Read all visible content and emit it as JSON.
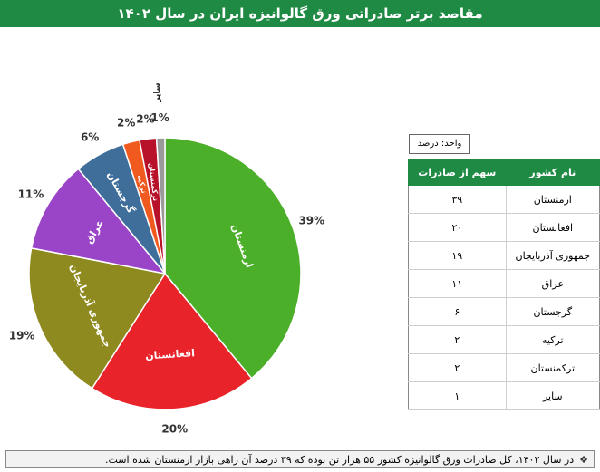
{
  "header": {
    "title": "مقاصد برتر صادراتی ورق گالوانیزه ایران در سال ۱۴۰۲"
  },
  "unit_label": "واحد: درصد",
  "table": {
    "headers": [
      "نام کشور",
      "سهم از صادرات"
    ],
    "rows": [
      [
        "ارمنستان",
        "۳۹"
      ],
      [
        "افغانستان",
        "۲۰"
      ],
      [
        "جمهوری آذربایجان",
        "۱۹"
      ],
      [
        "عراق",
        "۱۱"
      ],
      [
        "گرجستان",
        "۶"
      ],
      [
        "ترکیه",
        "۲"
      ],
      [
        "ترکمنستان",
        "۲"
      ],
      [
        "سایر",
        "۱"
      ]
    ]
  },
  "note": {
    "icon": "diamond-bullet-icon",
    "text": "در سال ۱۴۰۲، کل صادرات ورق گالوانیزه کشور ۵۵ هزار تن بوده که ۳۹ درصد آن راهی بازار ارمنستان شده است."
  },
  "chart_data": {
    "type": "pie",
    "title": "مقاصد برتر صادراتی ورق گالوانیزه ایران در سال ۱۴۰۲",
    "categories": [
      "ارمنستان",
      "افغانستان",
      "جمهوری آذربایجان",
      "عراق",
      "گرجستان",
      "ترکیه",
      "ترکمنستان",
      "سایر"
    ],
    "values": [
      39,
      20,
      19,
      11,
      6,
      2,
      2,
      1
    ],
    "value_labels": [
      "39%",
      "20%",
      "19%",
      "11%",
      "6%",
      "2%",
      "2%",
      "1%"
    ],
    "slice_labels": [
      "ارمنستان",
      "افغانستان",
      "جمهوری آذربایجان",
      "عراق",
      "گرجستان",
      "ترکیه",
      "ترکمنستان",
      ""
    ],
    "other_label": "سایر",
    "colors": [
      "#4caf2a",
      "#e8232a",
      "#8f8a1f",
      "#9a44c8",
      "#3f6e9a",
      "#f05a1e",
      "#b8122a",
      "#9a9a9a"
    ]
  }
}
